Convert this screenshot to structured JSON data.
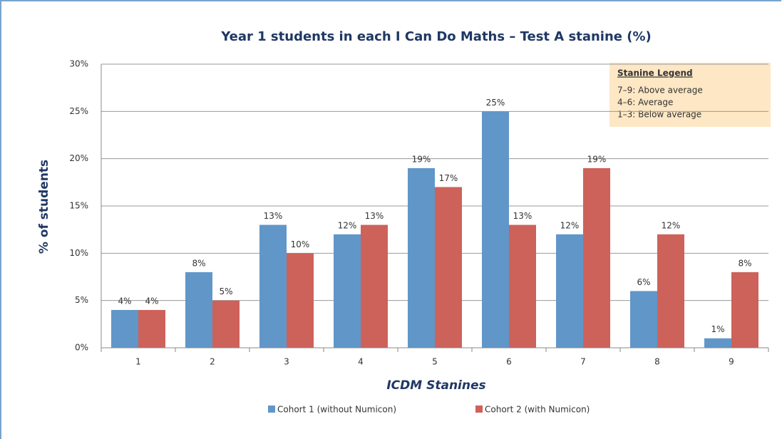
{
  "chart_data": {
    "type": "bar",
    "title": "Year 1 students in each I Can Do Maths – Test A stanine (%)",
    "x_label": "ICDM Stanines",
    "y_label": "% of students",
    "categories": [
      "1",
      "2",
      "3",
      "4",
      "5",
      "6",
      "7",
      "8",
      "9"
    ],
    "series": [
      {
        "name": "Cohort 1 (without Numicon)",
        "color": "#6196c9",
        "values": [
          4,
          8,
          13,
          12,
          19,
          25,
          12,
          6,
          1
        ],
        "value_labels": [
          "4%",
          "8%",
          "13%",
          "12%",
          "19%",
          "25%",
          "12%",
          "6%",
          "1%"
        ]
      },
      {
        "name": "Cohort 2 (with Numicon)",
        "color": "#cd625a",
        "values": [
          4,
          5,
          10,
          13,
          17,
          13,
          19,
          12,
          8
        ],
        "value_labels": [
          "4%",
          "5%",
          "10%",
          "13%",
          "17%",
          "13%",
          "19%",
          "12%",
          "8%"
        ]
      }
    ],
    "ylim": [
      0,
      30
    ],
    "yticks": [
      {
        "value": 0,
        "label": "0%"
      },
      {
        "value": 5,
        "label": "5%"
      },
      {
        "value": 10,
        "label": "10%"
      },
      {
        "value": 15,
        "label": "15%"
      },
      {
        "value": 20,
        "label": "20%"
      },
      {
        "value": 25,
        "label": "25%"
      },
      {
        "value": 30,
        "label": "30%"
      }
    ],
    "grid": true,
    "legend": "bottom",
    "annotation": {
      "title": "Stanine Legend",
      "lines": [
        "7–9: Above average",
        "4–6: Average",
        "1–3: Below average"
      ]
    }
  }
}
